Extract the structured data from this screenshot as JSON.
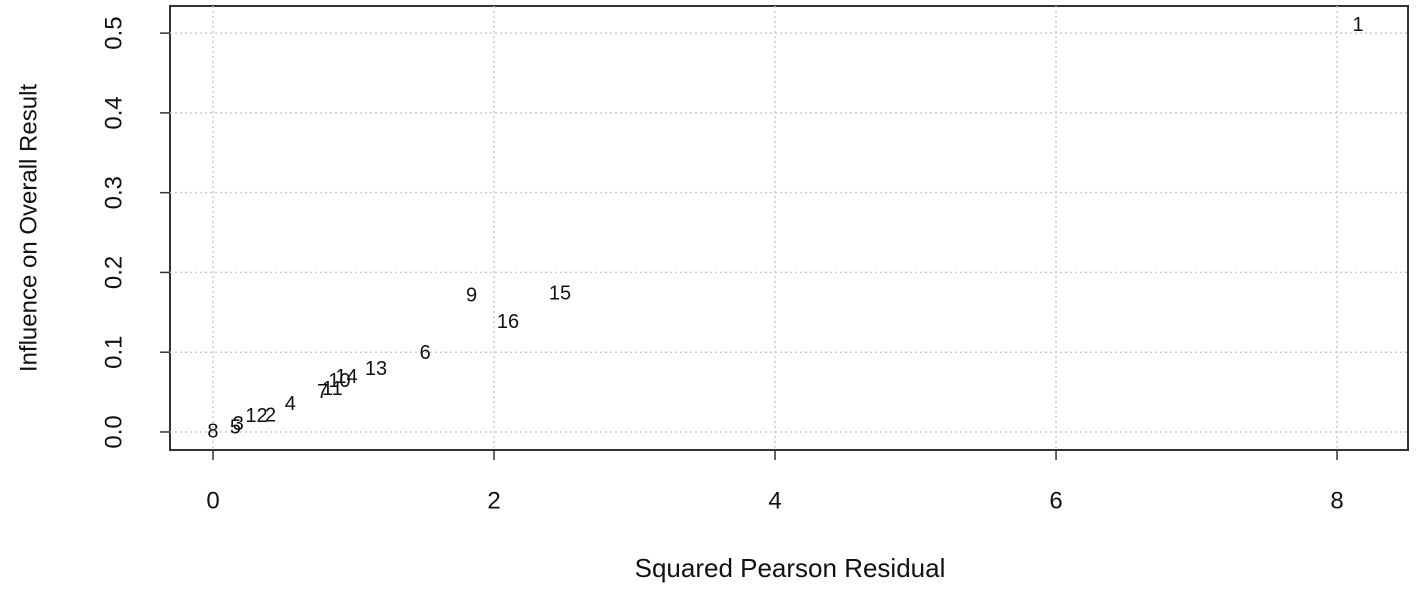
{
  "chart_data": {
    "type": "scatter-text",
    "xlabel": "Squared Pearson Residual",
    "ylabel": "Influence on Overall Result",
    "series": [
      {
        "color": "#000000",
        "labels": [
          "8",
          "5",
          "3",
          "12",
          "2",
          "4",
          "7",
          "11",
          "10",
          "14",
          "13",
          "6",
          "9",
          "16",
          "15",
          "1"
        ],
        "x": [
          0.0,
          0.16,
          0.18,
          0.31,
          0.41,
          0.55,
          0.78,
          0.85,
          0.9,
          0.95,
          1.16,
          1.51,
          1.84,
          2.1,
          2.47,
          8.15
        ],
        "values": [
          0.0,
          0.005,
          0.009,
          0.019,
          0.02,
          0.034,
          0.049,
          0.053,
          0.063,
          0.068,
          0.078,
          0.098,
          0.17,
          0.137,
          0.173,
          0.509
        ]
      }
    ],
    "xlim": [
      -0.306,
      8.505
    ],
    "ylim": [
      -0.0226,
      0.534
    ],
    "xticks": [
      0,
      2,
      4,
      6,
      8
    ],
    "yticks": [
      {
        "value": 0,
        "label": "0.0"
      },
      0.1,
      0.2,
      0.3,
      0.4,
      0.5
    ],
    "grid": true,
    "grid_color": "#cccccc"
  }
}
